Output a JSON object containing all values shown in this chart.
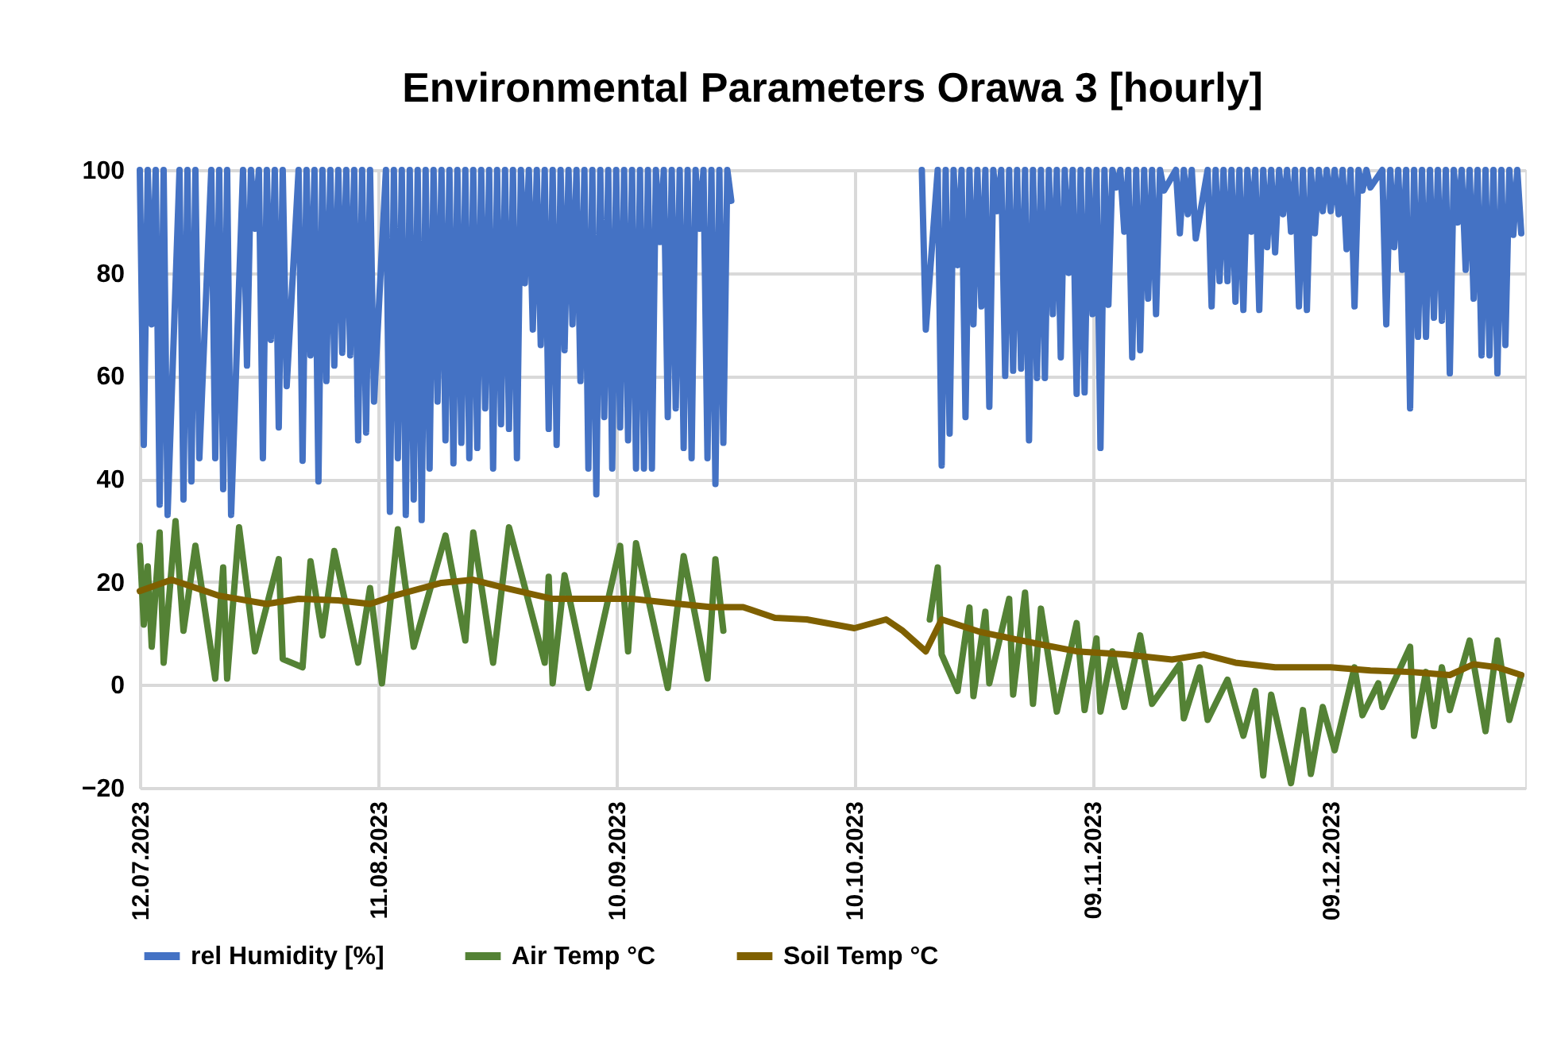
{
  "chart_data": {
    "type": "line",
    "title": "Environmental Parameters Orawa 3 [hourly]",
    "xlim": [
      "2023-07-12",
      "2024-01-02T12:00"
    ],
    "xticks": [
      {
        "value": "2023-07-12",
        "label": "12.07.2023"
      },
      {
        "value": "2023-08-11",
        "label": "11.08.2023"
      },
      {
        "value": "2023-09-10",
        "label": "10.09.2023"
      },
      {
        "value": "2023-10-10",
        "label": "10.10.2023"
      },
      {
        "value": "2023-11-09",
        "label": "09.11.2023"
      },
      {
        "value": "2023-12-09",
        "label": "09.12.2023"
      }
    ],
    "ylim": [
      -20,
      100
    ],
    "yticks": [
      -20,
      0,
      20,
      40,
      60,
      80,
      100
    ],
    "grid": true,
    "legend": "bottom",
    "series": [
      {
        "name": "rel Humidity [%]",
        "color": "#4472c4",
        "x": [
          "2023-07-12",
          "2023-07-12T12:00",
          "2023-07-13",
          "2023-07-13T12:00",
          "2023-07-14",
          "2023-07-14T12:00",
          "2023-07-15",
          "2023-07-15T12:00",
          "2023-07-17",
          "2023-07-17T12:00",
          "2023-07-18",
          "2023-07-18T12:00",
          "2023-07-19",
          "2023-07-19T12:00",
          "2023-07-21",
          "2023-07-21T12:00",
          "2023-07-22",
          "2023-07-22T12:00",
          "2023-07-23",
          "2023-07-23T12:00",
          "2023-07-25",
          "2023-07-25T12:00",
          "2023-07-26",
          "2023-07-26T12:00",
          "2023-07-27",
          "2023-07-27T12:00",
          "2023-07-28",
          "2023-07-28T12:00",
          "2023-07-29",
          "2023-07-29T12:00",
          "2023-07-30",
          "2023-07-30T12:00",
          "2023-08-01",
          "2023-08-01T12:00",
          "2023-08-02",
          "2023-08-02T12:00",
          "2023-08-03",
          "2023-08-03T12:00",
          "2023-08-04",
          "2023-08-04T12:00",
          "2023-08-05",
          "2023-08-05T12:00",
          "2023-08-06",
          "2023-08-06T12:00",
          "2023-08-07",
          "2023-08-07T12:00",
          "2023-08-08",
          "2023-08-08T12:00",
          "2023-08-09",
          "2023-08-09T12:00",
          "2023-08-10",
          "2023-08-10T12:00",
          "2023-08-12",
          "2023-08-12T12:00",
          "2023-08-13",
          "2023-08-13T12:00",
          "2023-08-14",
          "2023-08-14T12:00",
          "2023-08-15",
          "2023-08-15T12:00",
          "2023-08-16",
          "2023-08-16T12:00",
          "2023-08-17",
          "2023-08-17T12:00",
          "2023-08-18",
          "2023-08-18T12:00",
          "2023-08-19",
          "2023-08-19T12:00",
          "2023-08-20",
          "2023-08-20T12:00",
          "2023-08-21",
          "2023-08-21T12:00",
          "2023-08-22",
          "2023-08-22T12:00",
          "2023-08-23",
          "2023-08-23T12:00",
          "2023-08-24",
          "2023-08-24T12:00",
          "2023-08-25",
          "2023-08-25T12:00",
          "2023-08-26",
          "2023-08-26T12:00",
          "2023-08-27",
          "2023-08-27T12:00",
          "2023-08-28",
          "2023-08-28T12:00",
          "2023-08-29",
          "2023-08-29T12:00",
          "2023-08-30",
          "2023-08-30T12:00",
          "2023-08-31",
          "2023-08-31T12:00",
          "2023-09-01",
          "2023-09-01T12:00",
          "2023-09-02",
          "2023-09-02T12:00",
          "2023-09-03",
          "2023-09-03T12:00",
          "2023-09-04",
          "2023-09-04T12:00",
          "2023-09-05",
          "2023-09-05T12:00",
          "2023-09-06",
          "2023-09-06T12:00",
          "2023-09-07",
          "2023-09-07T12:00",
          "2023-09-08",
          "2023-09-08T12:00",
          "2023-09-09",
          "2023-09-09T12:00",
          "2023-09-10",
          "2023-09-10T12:00",
          "2023-09-11",
          "2023-09-11T12:00",
          "2023-09-12",
          "2023-09-12T12:00",
          "2023-09-13",
          "2023-09-13T12:00",
          "2023-09-14",
          "2023-09-14T12:00",
          "2023-09-15",
          "2023-09-15T12:00",
          "2023-09-16",
          "2023-09-16T12:00",
          "2023-09-17",
          "2023-09-17T12:00",
          "2023-09-18",
          "2023-09-18T12:00",
          "2023-09-19",
          "2023-09-19T12:00",
          "2023-09-20",
          "2023-09-20T12:00",
          "2023-09-21",
          "2023-09-21T12:00",
          "2023-09-22",
          "2023-09-22T12:00",
          "2023-09-23",
          "2023-09-23T12:00",
          "2023-09-24",
          "2023-09-24T12:00",
          "2023-10-01",
          "2023-10-18T12:00",
          "2023-10-19",
          "2023-10-20T12:00",
          "2023-10-21",
          "2023-10-21T12:00",
          "2023-10-22",
          "2023-10-22T12:00",
          "2023-10-23",
          "2023-10-23T12:00",
          "2023-10-24",
          "2023-10-24T12:00",
          "2023-10-25",
          "2023-10-25T12:00",
          "2023-10-26",
          "2023-10-26T12:00",
          "2023-10-27",
          "2023-10-27T12:00",
          "2023-10-28",
          "2023-10-28T12:00",
          "2023-10-29",
          "2023-10-29T12:00",
          "2023-10-30",
          "2023-10-30T12:00",
          "2023-10-31",
          "2023-10-31T12:00",
          "2023-11-01",
          "2023-11-01T12:00",
          "2023-11-02",
          "2023-11-02T12:00",
          "2023-11-03",
          "2023-11-03T12:00",
          "2023-11-04",
          "2023-11-04T12:00",
          "2023-11-05",
          "2023-11-05T12:00",
          "2023-11-06",
          "2023-11-06T12:00",
          "2023-11-07",
          "2023-11-07T12:00",
          "2023-11-08",
          "2023-11-08T12:00",
          "2023-11-09",
          "2023-11-09T12:00",
          "2023-11-10",
          "2023-11-10T12:00",
          "2023-11-11",
          "2023-11-11T12:00",
          "2023-11-12",
          "2023-11-12T12:00",
          "2023-11-13",
          "2023-11-13T12:00",
          "2023-11-14",
          "2023-11-14T12:00",
          "2023-11-15",
          "2023-11-15T12:00",
          "2023-11-16",
          "2023-11-16T12:00",
          "2023-11-17",
          "2023-11-17T12:00",
          "2023-11-18",
          "2023-11-19T12:00",
          "2023-11-20",
          "2023-11-20T12:00",
          "2023-11-21",
          "2023-11-21T12:00",
          "2023-11-22",
          "2023-11-23T12:00",
          "2023-11-24",
          "2023-11-24T12:00",
          "2023-11-25",
          "2023-11-25T12:00",
          "2023-11-26",
          "2023-11-26T12:00",
          "2023-11-27",
          "2023-11-27T12:00",
          "2023-11-28",
          "2023-11-28T12:00",
          "2023-11-29",
          "2023-11-29T12:00",
          "2023-11-30",
          "2023-11-30T12:00",
          "2023-12-01",
          "2023-12-01T12:00",
          "2023-12-02",
          "2023-12-02T12:00",
          "2023-12-03",
          "2023-12-03T12:00",
          "2023-12-04",
          "2023-12-04T12:00",
          "2023-12-05",
          "2023-12-05T12:00",
          "2023-12-06",
          "2023-12-06T12:00",
          "2023-12-07",
          "2023-12-07T12:00",
          "2023-12-08",
          "2023-12-08T12:00",
          "2023-12-09",
          "2023-12-09T12:00",
          "2023-12-10",
          "2023-12-10T12:00",
          "2023-12-11",
          "2023-12-11T12:00",
          "2023-12-12",
          "2023-12-12T12:00",
          "2023-12-13",
          "2023-12-13T12:00",
          "2023-12-14",
          "2023-12-15T12:00",
          "2023-12-16",
          "2023-12-16T12:00",
          "2023-12-17",
          "2023-12-17T12:00",
          "2023-12-18",
          "2023-12-18T12:00",
          "2023-12-19",
          "2023-12-19T12:00",
          "2023-12-20",
          "2023-12-20T12:00",
          "2023-12-21",
          "2023-12-21T12:00",
          "2023-12-22",
          "2023-12-22T12:00",
          "2023-12-23",
          "2023-12-23T12:00",
          "2023-12-24",
          "2023-12-24T12:00",
          "2023-12-25",
          "2023-12-25T12:00",
          "2023-12-26",
          "2023-12-26T12:00",
          "2023-12-27",
          "2023-12-27T12:00",
          "2023-12-28",
          "2023-12-28T12:00",
          "2023-12-29",
          "2023-12-29T12:00",
          "2023-12-30",
          "2023-12-30T12:00",
          "2023-12-31",
          "2023-12-31T12:00",
          "2024-01-01",
          "2024-01-01T12:00",
          "2024-01-02"
        ],
        "values": [
          100,
          46.6,
          100,
          70,
          100,
          35,
          100,
          33,
          100,
          36,
          100,
          39.5,
          100,
          44,
          100,
          44,
          100,
          38,
          100,
          33,
          100,
          62,
          100,
          88.6,
          100,
          44,
          100,
          67,
          100,
          50,
          100,
          58,
          100,
          43.5,
          100,
          64,
          100,
          39.5,
          100,
          59,
          100,
          62,
          100,
          64.5,
          100,
          64,
          100,
          47.5,
          100,
          49,
          100,
          55,
          100,
          33.6,
          100,
          44,
          100,
          33,
          100,
          36,
          100,
          32,
          100,
          42,
          100,
          55,
          100,
          47.5,
          100,
          43,
          100,
          47,
          100,
          44,
          100,
          46,
          100,
          53.7,
          100,
          42,
          100,
          50.6,
          100,
          49.7,
          100,
          44,
          100,
          78,
          100,
          69,
          100,
          66,
          100,
          49.7,
          100,
          46.6,
          100,
          65,
          100,
          70,
          100,
          59,
          100,
          42,
          100,
          37,
          100,
          52,
          100,
          42,
          100,
          50,
          100,
          47.5,
          100,
          42,
          100,
          42,
          100,
          42,
          100,
          86,
          100,
          52,
          100,
          53.7,
          100,
          46,
          100,
          44,
          100,
          88.6,
          100,
          44,
          100,
          39,
          100,
          47,
          100,
          94,
          null,
          100,
          69,
          100,
          42.6,
          100,
          48.8,
          100,
          81.5,
          100,
          52,
          100,
          70,
          100,
          73.5,
          100,
          54,
          100,
          92,
          100,
          60,
          100,
          61,
          100,
          61.4,
          100,
          47.5,
          100,
          59.6,
          100,
          59.6,
          100,
          72,
          100,
          63.6,
          100,
          80,
          100,
          56.5,
          100,
          56.8,
          100,
          72,
          100,
          46,
          100,
          73.8,
          100,
          96.6,
          100,
          88,
          100,
          63.6,
          100,
          65,
          100,
          75,
          100,
          72,
          100,
          96,
          100,
          87.7,
          100,
          91.4,
          100,
          86.7,
          100,
          73.5,
          100,
          78.4,
          100,
          78.4,
          100,
          74.4,
          100,
          72.8,
          100,
          88,
          100,
          72.8,
          100,
          85,
          100,
          84,
          100,
          91.4,
          100,
          88,
          100,
          73.5,
          100,
          72.8,
          100,
          87.7,
          100,
          92,
          100,
          92,
          100,
          91.4,
          100,
          84.6,
          100,
          73.5,
          100,
          96,
          100,
          96.6,
          100,
          70,
          100,
          85,
          100,
          80.6,
          100,
          53.7,
          100,
          67.6,
          100,
          67.6,
          100,
          71.3,
          100,
          70.7,
          100,
          60.5,
          100,
          89.8,
          100,
          80.6,
          100,
          75,
          100,
          64,
          100,
          64,
          100,
          60.5,
          100,
          66,
          100,
          87.4,
          100,
          87.7
        ]
      },
      {
        "name": "Air Temp °C",
        "color": "#548235",
        "x": [
          "2023-07-12",
          "2023-07-12T12:00",
          "2023-07-13",
          "2023-07-13T12:00",
          "2023-07-14T12:00",
          "2023-07-15",
          "2023-07-16T12:00",
          "2023-07-17T12:00",
          "2023-07-19",
          "2023-07-21T12:00",
          "2023-07-22T12:00",
          "2023-07-23",
          "2023-07-24T12:00",
          "2023-07-26T12:00",
          "2023-07-29T12:00",
          "2023-07-30",
          "2023-08-01T12:00",
          "2023-08-02T12:00",
          "2023-08-04",
          "2023-08-05T12:00",
          "2023-08-08T12:00",
          "2023-08-10",
          "2023-08-11T12:00",
          "2023-08-13T12:00",
          "2023-08-15T12:00",
          "2023-08-19T12:00",
          "2023-08-22",
          "2023-08-23",
          "2023-08-25T12:00",
          "2023-08-27T12:00",
          "2023-09-01",
          "2023-09-01T12:00",
          "2023-09-02",
          "2023-09-03T12:00",
          "2023-09-06T12:00",
          "2023-09-10T12:00",
          "2023-09-11T12:00",
          "2023-09-12T12:00",
          "2023-09-16T12:00",
          "2023-09-18T12:00",
          "2023-09-21T12:00",
          "2023-09-22T12:00",
          "2023-09-23T12:00",
          "2023-10-01",
          "2023-10-19T12:00",
          "2023-10-20T12:00",
          "2023-10-21",
          "2023-10-23",
          "2023-10-24T12:00",
          "2023-10-25",
          "2023-10-26T12:00",
          "2023-10-27",
          "2023-10-29T12:00",
          "2023-10-30",
          "2023-10-31T12:00",
          "2023-11-01T12:00",
          "2023-11-02T12:00",
          "2023-11-04T12:00",
          "2023-11-07",
          "2023-11-08",
          "2023-11-09T12:00",
          "2023-11-10",
          "2023-11-11T12:00",
          "2023-11-13",
          "2023-11-15",
          "2023-11-16T12:00",
          "2023-11-20",
          "2023-11-20T12:00",
          "2023-11-22T12:00",
          "2023-11-23T12:00",
          "2023-11-26",
          "2023-11-28",
          "2023-11-29T12:00",
          "2023-11-30T12:00",
          "2023-12-01T12:00",
          "2023-12-04",
          "2023-12-05T12:00",
          "2023-12-06T12:00",
          "2023-12-08",
          "2023-12-09T12:00",
          "2023-12-12",
          "2023-12-13",
          "2023-12-15",
          "2023-12-15T12:00",
          "2023-12-19",
          "2023-12-19T12:00",
          "2023-12-21",
          "2023-12-22",
          "2023-12-23",
          "2023-12-24",
          "2023-12-26T12:00",
          "2023-12-28T12:00",
          "2023-12-30",
          "2023-12-31T12:00",
          "2024-01-02"
        ],
        "values": [
          27,
          11.7,
          23,
          7.4,
          29.6,
          4.3,
          31.8,
          10.5,
          27,
          1.2,
          22.8,
          1.2,
          30.6,
          6.5,
          24.4,
          5,
          3.4,
          24,
          9.6,
          26,
          4.3,
          18.8,
          0.3,
          30.2,
          7.4,
          29,
          8.6,
          29.6,
          4.3,
          30.6,
          4.3,
          21,
          0.3,
          21.3,
          -0.6,
          27,
          6.5,
          27.5,
          -0.6,
          25,
          1.2,
          24.4,
          10.5,
          null,
          12.7,
          22.8,
          5.9,
          -1.2,
          15,
          -2.2,
          14.2,
          0.3,
          16.7,
          -1.9,
          17.9,
          -3.7,
          14.8,
          -5.2,
          12,
          -4.9,
          9,
          -5.2,
          6.5,
          -4.3,
          9.6,
          -3.7,
          4,
          -6.5,
          3.4,
          -6.8,
          1,
          -9.9,
          -1.2,
          -17.6,
          -1.9,
          -19.1,
          -4.9,
          -17.3,
          -4.3,
          -12.7,
          3.4,
          -5.9,
          0.3,
          -4.3,
          7.4,
          -9.9,
          2.5,
          -8,
          3.4,
          -4.9,
          8.6,
          -9,
          8.6,
          -6.8,
          1.9
        ]
      },
      {
        "name": "Soil Temp °C",
        "color": "#7f6000",
        "x": [
          "2023-07-12",
          "2023-07-16",
          "2023-07-22",
          "2023-07-28",
          "2023-08-01",
          "2023-08-06",
          "2023-08-10",
          "2023-08-13",
          "2023-08-19",
          "2023-08-23",
          "2023-08-27",
          "2023-09-02",
          "2023-09-07",
          "2023-09-12",
          "2023-09-18",
          "2023-09-22",
          "2023-09-26",
          "2023-09-30",
          "2023-10-04",
          "2023-10-10",
          "2023-10-14",
          "2023-10-16",
          "2023-10-19",
          "2023-10-21",
          "2023-10-26",
          "2023-11-02",
          "2023-11-07",
          "2023-11-13",
          "2023-11-19",
          "2023-11-23",
          "2023-11-27",
          "2023-12-02",
          "2023-12-09",
          "2023-12-14",
          "2023-12-19",
          "2023-12-24",
          "2023-12-27",
          "2023-12-30",
          "2024-01-02"
        ],
        "values": [
          18.2,
          20.4,
          17.3,
          15.7,
          16.7,
          16.4,
          15.7,
          17.3,
          19.8,
          20.4,
          18.8,
          16.7,
          16.7,
          16.7,
          15.7,
          15.1,
          15.1,
          13,
          12.7,
          11,
          12.7,
          10.6,
          6.5,
          12.7,
          10.2,
          8,
          6.5,
          5.9,
          4.9,
          5.9,
          4.3,
          3.4,
          3.4,
          2.8,
          2.5,
          1.9,
          4,
          3.4,
          1.9
        ]
      }
    ]
  }
}
